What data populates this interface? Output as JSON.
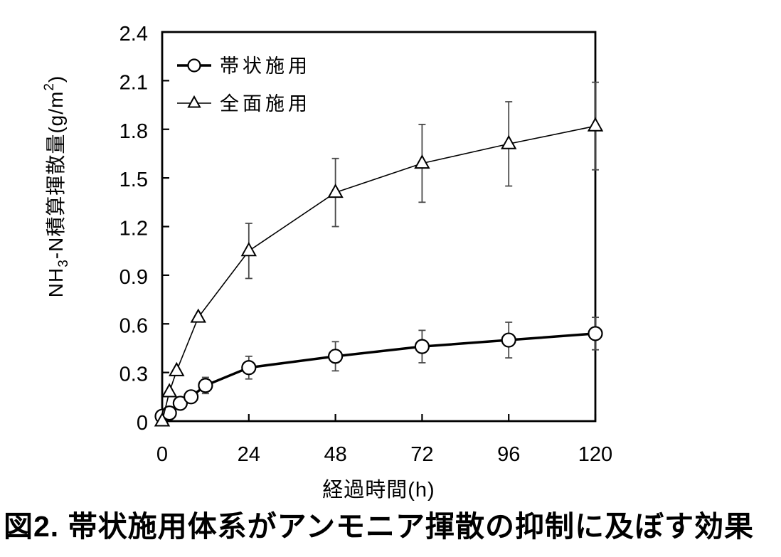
{
  "figure": {
    "caption": "図2. 帯状施用体系がアンモニア揮散の抑制に及ぼす効果"
  },
  "chart_data": {
    "type": "line",
    "title": "",
    "xlabel": "経過時間(h)",
    "ylabel": "NH3-N積算揮散量(g/m2)",
    "ylabel_rich": [
      {
        "text": "NH",
        "style": "normal"
      },
      {
        "text": "3",
        "style": "sub"
      },
      {
        "text": "-N積算揮散量(g/m",
        "style": "normal"
      },
      {
        "text": "2",
        "style": "sup"
      },
      {
        "text": ")",
        "style": "normal"
      }
    ],
    "xlim": [
      0,
      120
    ],
    "ylim": [
      0,
      2.4
    ],
    "xticks": [
      0,
      24,
      48,
      72,
      96,
      120
    ],
    "xtick_labels": [
      "0",
      "24",
      "48",
      "72",
      "96",
      "120"
    ],
    "yticks": [
      0,
      0.3,
      0.6,
      0.9,
      1.2,
      1.5,
      1.8,
      2.1,
      2.4
    ],
    "ytick_labels": [
      "0",
      "0.3",
      "0.6",
      "0.9",
      "1.2",
      "1.5",
      "1.8",
      "2.1",
      "2.4"
    ],
    "grid": false,
    "legend": {
      "position": "top-left",
      "entries": [
        "帯状施用",
        "全面施用"
      ]
    },
    "error_bar_color": "#4a4a4a",
    "series": [
      {
        "name": "帯状施用",
        "marker": "circle",
        "color": "#000000",
        "line_width": 3.5,
        "x": [
          0,
          2,
          5,
          8,
          12,
          24,
          48,
          72,
          96,
          120
        ],
        "y": [
          0.03,
          0.05,
          0.11,
          0.15,
          0.22,
          0.33,
          0.4,
          0.46,
          0.5,
          0.54
        ],
        "err": [
          0,
          0,
          0,
          0,
          0.05,
          0.07,
          0.09,
          0.1,
          0.11,
          0.1
        ]
      },
      {
        "name": "全面施用",
        "marker": "triangle",
        "color": "#000000",
        "line_width": 1.6,
        "x": [
          0,
          2,
          4,
          10,
          24,
          48,
          72,
          96,
          120
        ],
        "y": [
          0.0,
          0.18,
          0.31,
          0.64,
          1.05,
          1.41,
          1.59,
          1.71,
          1.82
        ],
        "err": [
          0,
          0,
          0,
          0,
          0.17,
          0.21,
          0.24,
          0.26,
          0.27
        ]
      }
    ]
  }
}
